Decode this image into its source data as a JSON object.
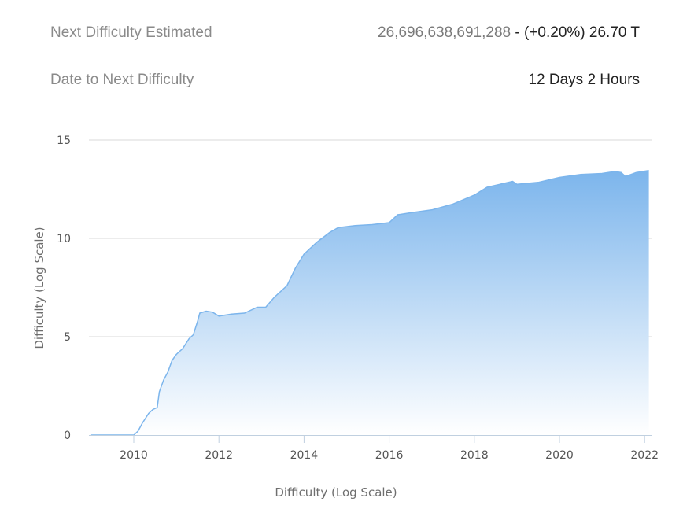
{
  "stats": {
    "next_difficulty": {
      "label": "Next Difficulty Estimated",
      "value_raw": "26,696,638,691,288",
      "value_sep": " - ",
      "value_change": "(+0.20%) 26.70 T"
    },
    "date_to_next": {
      "label": "Date to Next Difficulty",
      "value": "12 Days 2 Hours"
    }
  },
  "colors": {
    "line": "#7cb5ec",
    "fill_top": "#7cb5ec",
    "fill_bottom": "#ffffff",
    "grid": "#d8d8d8",
    "axis": "#c0d0e0"
  },
  "chart_data": {
    "type": "area",
    "title": "",
    "xlabel": "Difficulty (Log Scale)",
    "ylabel": "Difficulty (Log Scale)",
    "x_ticks": [
      "2010",
      "2012",
      "2014",
      "2016",
      "2018",
      "2020",
      "2022"
    ],
    "y_ticks": [
      "0",
      "5",
      "10",
      "15"
    ],
    "xlim": [
      2009.0,
      2022.3
    ],
    "ylim": [
      0,
      15
    ],
    "grid": true,
    "legend": "none",
    "x": [
      2009.0,
      2009.5,
      2010.0,
      2010.1,
      2010.2,
      2010.35,
      2010.45,
      2010.55,
      2010.6,
      2010.7,
      2010.8,
      2010.9,
      2011.0,
      2011.15,
      2011.3,
      2011.4,
      2011.5,
      2011.55,
      2011.7,
      2011.85,
      2012.0,
      2012.3,
      2012.6,
      2012.9,
      2013.1,
      2013.3,
      2013.6,
      2013.8,
      2014.0,
      2014.3,
      2014.6,
      2014.8,
      2015.2,
      2015.6,
      2016.0,
      2016.2,
      2016.5,
      2017.0,
      2017.5,
      2018.0,
      2018.3,
      2018.7,
      2018.9,
      2019.0,
      2019.5,
      2020.0,
      2020.5,
      2021.0,
      2021.3,
      2021.45,
      2021.55,
      2021.8,
      2022.1
    ],
    "values": [
      0,
      0,
      0,
      0.2,
      0.6,
      1.1,
      1.3,
      1.4,
      2.2,
      2.8,
      3.2,
      3.8,
      4.1,
      4.4,
      4.9,
      5.1,
      5.8,
      6.2,
      6.3,
      6.25,
      6.05,
      6.15,
      6.2,
      6.5,
      6.5,
      7.0,
      7.6,
      8.5,
      9.2,
      9.8,
      10.3,
      10.55,
      10.65,
      10.7,
      10.8,
      11.2,
      11.3,
      11.45,
      11.75,
      12.2,
      12.6,
      12.8,
      12.9,
      12.75,
      12.85,
      13.1,
      13.25,
      13.3,
      13.4,
      13.35,
      13.15,
      13.35,
      13.45
    ]
  }
}
